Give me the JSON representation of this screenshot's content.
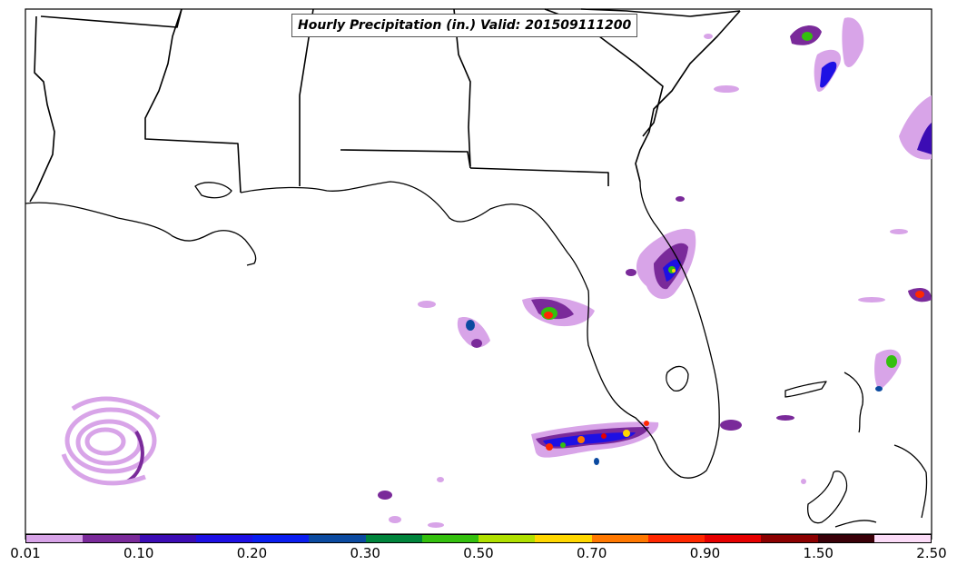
{
  "map": {
    "title": "Hourly Precipitation (in.) Valid: 201509111200",
    "background_color": "#ffffff",
    "coastline_color": "#000000",
    "depicted_regions": [
      "Louisiana",
      "Mississippi",
      "Alabama",
      "Georgia",
      "South Carolina",
      "Florida",
      "Gulf of Mexico",
      "Atlantic Ocean",
      "Bahamas",
      "Cuba"
    ]
  },
  "colorbar": {
    "colors": [
      "#d8a4e8",
      "#7a2a9a",
      "#3c0cb4",
      "#1e10e4",
      "#0a1ef0",
      "#0b4aa0",
      "#00843c",
      "#34c00e",
      "#b0e000",
      "#ffd700",
      "#ff7800",
      "#ff2800",
      "#e60000",
      "#8b0000",
      "#3a0008",
      "#fcdcf8"
    ],
    "tick_labels": [
      "0.01",
      "0.10",
      "0.20",
      "0.30",
      "0.50",
      "0.70",
      "0.90",
      "1.50",
      "2.50"
    ]
  }
}
